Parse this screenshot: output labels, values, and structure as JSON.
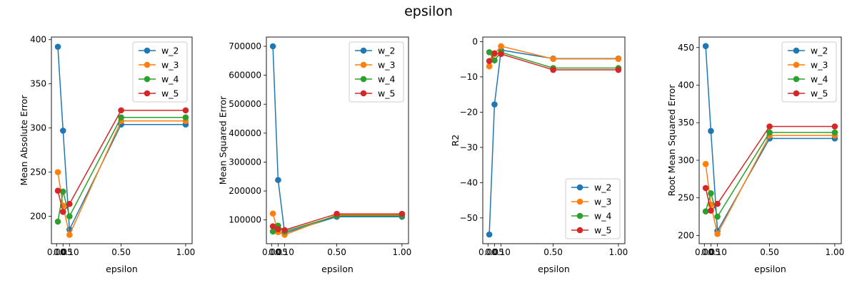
{
  "figure": {
    "title": "epsilon"
  },
  "colors": {
    "w_2": "#1f77b4",
    "w_3": "#ff7f0e",
    "w_4": "#2ca02c",
    "w_5": "#d62728"
  },
  "chart_data": [
    {
      "type": "line",
      "xlabel": "epsilon",
      "ylabel": "Mean Absolute Error",
      "x": [
        0.01,
        0.05,
        0.1,
        0.5,
        1.0
      ],
      "xticks": [
        0.0,
        0.05,
        0.1,
        0.5,
        1.0
      ],
      "xtick_labels": [
        "0.00",
        "0.05",
        "0.10",
        "0.50",
        "1.00"
      ],
      "xlim": [
        -0.04,
        1.05
      ],
      "ylim": [
        169,
        403
      ],
      "yticks": [
        200,
        250,
        300,
        350,
        400
      ],
      "ytick_labels": [
        "200",
        "250",
        "300",
        "350",
        "400"
      ],
      "legend": "upper right",
      "grid": false,
      "series": [
        {
          "name": "w_2",
          "values": [
            392,
            297,
            185,
            304,
            304
          ]
        },
        {
          "name": "w_3",
          "values": [
            250,
            212,
            179,
            308,
            308
          ]
        },
        {
          "name": "w_4",
          "values": [
            194,
            228,
            200,
            312,
            312
          ]
        },
        {
          "name": "w_5",
          "values": [
            229,
            205,
            214,
            320,
            320
          ]
        }
      ]
    },
    {
      "type": "line",
      "xlabel": "epsilon",
      "ylabel": "Mean Squared Error",
      "x": [
        0.01,
        0.05,
        0.1,
        0.5,
        1.0
      ],
      "xticks": [
        0.0,
        0.05,
        0.1,
        0.5,
        1.0
      ],
      "xtick_labels": [
        "0.00",
        "0.05",
        "0.10",
        "0.50",
        "1.00"
      ],
      "xlim": [
        -0.04,
        1.05
      ],
      "ylim": [
        18000,
        732000
      ],
      "yticks": [
        100000,
        200000,
        300000,
        400000,
        500000,
        600000,
        700000
      ],
      "ytick_labels": [
        "100000",
        "200000",
        "300000",
        "400000",
        "500000",
        "600000",
        "700000"
      ],
      "legend": "upper right",
      "grid": false,
      "series": [
        {
          "name": "w_2",
          "values": [
            700000,
            238000,
            55000,
            111000,
            111000
          ]
        },
        {
          "name": "w_3",
          "values": [
            122000,
            58000,
            49000,
            117000,
            117000
          ]
        },
        {
          "name": "w_4",
          "values": [
            60000,
            80000,
            60000,
            114000,
            114000
          ]
        },
        {
          "name": "w_5",
          "values": [
            78000,
            68000,
            65000,
            121000,
            121000
          ]
        }
      ]
    },
    {
      "type": "line",
      "xlabel": "epsilon",
      "ylabel": "R2",
      "x": [
        0.01,
        0.05,
        0.1,
        0.5,
        1.0
      ],
      "xticks": [
        0.0,
        0.05,
        0.1,
        0.5,
        1.0
      ],
      "xtick_labels": [
        "0.00",
        "0.05",
        "0.10",
        "0.50",
        "1.00"
      ],
      "xlim": [
        -0.04,
        1.05
      ],
      "ylim": [
        -57.3,
        1.3
      ],
      "yticks": [
        -50,
        -40,
        -30,
        -20,
        -10,
        0
      ],
      "ytick_labels": [
        "−50",
        "−40",
        "−30",
        "−20",
        "−10",
        "0"
      ],
      "legend": "lower right",
      "grid": false,
      "series": [
        {
          "name": "w_2",
          "values": [
            -54.7,
            -17.8,
            -2.4,
            -4.8,
            -4.8
          ]
        },
        {
          "name": "w_3",
          "values": [
            -7.0,
            -3.5,
            -1.3,
            -4.9,
            -4.9
          ]
        },
        {
          "name": "w_4",
          "values": [
            -3.0,
            -5.3,
            -3.0,
            -7.5,
            -7.5
          ]
        },
        {
          "name": "w_5",
          "values": [
            -5.5,
            -3.3,
            -3.5,
            -8.0,
            -8.0
          ]
        }
      ]
    },
    {
      "type": "line",
      "xlabel": "epsilon",
      "ylabel": "Root Mean Squared Error",
      "x": [
        0.01,
        0.05,
        0.1,
        0.5,
        1.0
      ],
      "xticks": [
        0.0,
        0.05,
        0.1,
        0.5,
        1.0
      ],
      "xtick_labels": [
        "0.00",
        "0.05",
        "0.10",
        "0.50",
        "1.00"
      ],
      "xlim": [
        -0.04,
        1.05
      ],
      "ylim": [
        189,
        464
      ],
      "yticks": [
        200,
        250,
        300,
        350,
        400,
        450
      ],
      "ytick_labels": [
        "200",
        "250",
        "300",
        "350",
        "400",
        "450"
      ],
      "legend": "upper right",
      "grid": false,
      "series": [
        {
          "name": "w_2",
          "values": [
            452,
            339,
            206,
            329,
            329
          ]
        },
        {
          "name": "w_3",
          "values": [
            295,
            241,
            202,
            333,
            333
          ]
        },
        {
          "name": "w_4",
          "values": [
            232,
            256,
            225,
            337,
            337
          ]
        },
        {
          "name": "w_5",
          "values": [
            263,
            233,
            242,
            345,
            345
          ]
        }
      ]
    }
  ]
}
